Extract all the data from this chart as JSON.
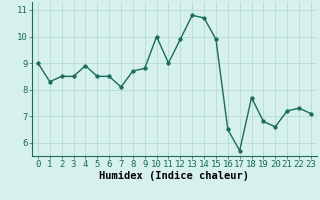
{
  "x": [
    0,
    1,
    2,
    3,
    4,
    5,
    6,
    7,
    8,
    9,
    10,
    11,
    12,
    13,
    14,
    15,
    16,
    17,
    18,
    19,
    20,
    21,
    22,
    23
  ],
  "y": [
    9.0,
    8.3,
    8.5,
    8.5,
    8.9,
    8.5,
    8.5,
    8.1,
    8.7,
    8.8,
    10.0,
    9.0,
    9.9,
    10.8,
    10.7,
    9.9,
    6.5,
    5.7,
    7.7,
    6.8,
    6.6,
    7.2,
    7.3,
    7.1
  ],
  "line_color": "#1a6b5a",
  "bg_color": "#d6f0ee",
  "grid_color": "#b8dbd8",
  "xlabel": "Humidex (Indice chaleur)",
  "xlim": [
    -0.5,
    23.5
  ],
  "ylim": [
    5.5,
    11.3
  ],
  "yticks": [
    6,
    7,
    8,
    9,
    10,
    11
  ],
  "xticks": [
    0,
    1,
    2,
    3,
    4,
    5,
    6,
    7,
    8,
    9,
    10,
    11,
    12,
    13,
    14,
    15,
    16,
    17,
    18,
    19,
    20,
    21,
    22,
    23
  ],
  "marker_size": 2.5,
  "linewidth": 1.0,
  "xlabel_fontsize": 7.5,
  "tick_fontsize": 6.5
}
